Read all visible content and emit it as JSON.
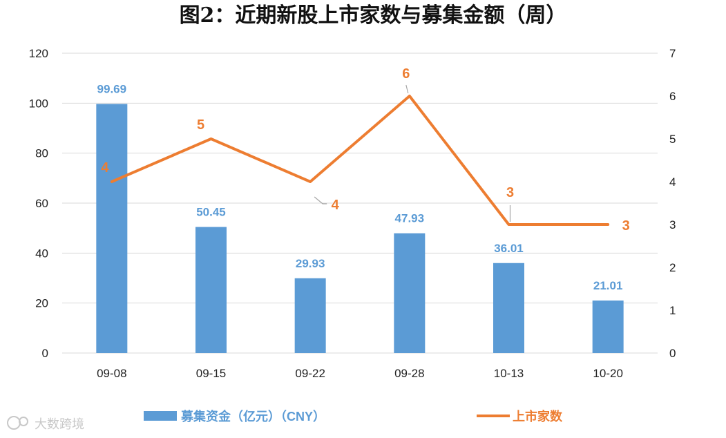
{
  "chart_data": {
    "type": "bar+line",
    "title": "图2：近期新股上市家数与募集金额（周）",
    "categories": [
      "09-08",
      "09-15",
      "09-22",
      "09-28",
      "10-13",
      "10-20"
    ],
    "series": [
      {
        "name": "募集资金（亿元）（CNY）",
        "type": "bar",
        "axis": "left",
        "color": "#5b9bd5",
        "values": [
          99.69,
          50.45,
          29.93,
          47.93,
          36.01,
          21.01
        ],
        "labels": [
          "99.69",
          "50.45",
          "29.93",
          "47.93",
          "36.01",
          "21.01"
        ]
      },
      {
        "name": "上市家数",
        "type": "line",
        "axis": "right",
        "color": "#ed7d31",
        "values": [
          4,
          5,
          4,
          6,
          3,
          3
        ],
        "labels": [
          "4",
          "5",
          "4",
          "6",
          "3",
          "3"
        ]
      }
    ],
    "y_left": {
      "min": 0,
      "max": 120,
      "ticks": [
        "0",
        "20",
        "40",
        "60",
        "80",
        "100",
        "120"
      ]
    },
    "y_right": {
      "min": 0,
      "max": 7,
      "ticks": [
        "0",
        "1",
        "2",
        "3",
        "4",
        "5",
        "6",
        "7"
      ]
    },
    "grid": true,
    "legend_position": "bottom"
  },
  "watermark": {
    "text": "大数跨境"
  }
}
